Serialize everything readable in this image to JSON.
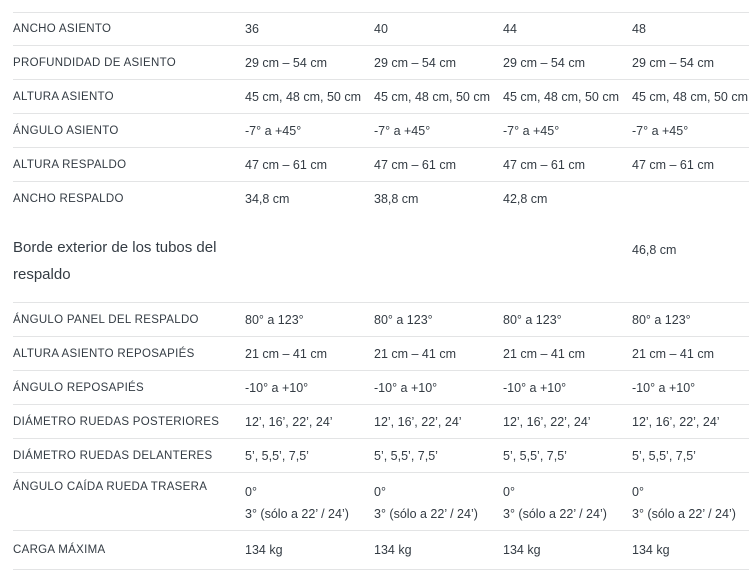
{
  "table": {
    "columns": [
      "36",
      "40",
      "44",
      "48"
    ],
    "rows": [
      {
        "label": "ANCHO ASIENTO",
        "variant": "first",
        "values": [
          "36",
          "40",
          "44",
          "48"
        ]
      },
      {
        "label": "PROFUNDIDAD DE ASIENTO",
        "variant": "",
        "values": [
          "29 cm – 54 cm",
          "29 cm – 54 cm",
          "29 cm – 54 cm",
          "29 cm – 54 cm"
        ]
      },
      {
        "label": "ALTURA ASIENTO",
        "variant": "",
        "values": [
          "45 cm, 48 cm, 50 cm",
          "45 cm, 48 cm, 50 cm",
          "45 cm, 48 cm, 50 cm",
          "45 cm, 48 cm, 50 cm"
        ]
      },
      {
        "label": "ÁNGULO ASIENTO",
        "variant": "",
        "values": [
          "-7° a +45°",
          "-7° a +45°",
          "-7° a +45°",
          "-7° a +45°"
        ]
      },
      {
        "label": "ALTURA RESPALDO",
        "variant": "",
        "values": [
          "47 cm – 61 cm",
          "47 cm – 61 cm",
          "47 cm – 61 cm",
          "47 cm – 61 cm"
        ]
      },
      {
        "label": "ANCHO RESPALDO",
        "variant": "no-border",
        "values": [
          "34,8 cm",
          "38,8 cm",
          "42,8 cm",
          ""
        ]
      },
      {
        "label": "Borde exterior de los tubos del respaldo",
        "variant": "tall",
        "values": [
          "",
          "",
          "",
          "46,8 cm"
        ]
      },
      {
        "label": "ÁNGULO PANEL DEL RESPALDO",
        "variant": "",
        "values": [
          "80° a 123°",
          "80° a 123°",
          "80° a 123°",
          "80° a 123°"
        ]
      },
      {
        "label": "ALTURA ASIENTO REPOSAPIÉS",
        "variant": "",
        "values": [
          "21 cm – 41 cm",
          "21 cm – 41 cm",
          "21 cm – 41 cm",
          "21 cm – 41 cm"
        ]
      },
      {
        "label": "ÁNGULO REPOSAPIÉS",
        "variant": "",
        "values": [
          "-10° a +10°",
          "-10° a +10°",
          "-10° a +10°",
          "-10° a +10°"
        ]
      },
      {
        "label": "DIÁMETRO RUEDAS POSTERIORES",
        "variant": "",
        "values": [
          "12’, 16’, 22’, 24’",
          "12’, 16’, 22’, 24’",
          "12’, 16’, 22’, 24’",
          "12’, 16’, 22’, 24’"
        ]
      },
      {
        "label": "DIÁMETRO RUEDAS DELANTERES",
        "variant": "",
        "values": [
          "5’, 5,5’, 7,5’",
          "5’, 5,5’, 7,5’",
          "5’, 5,5’, 7,5’",
          "5’, 5,5’, 7,5’"
        ]
      },
      {
        "label": "ÁNGULO CAÍDA RUEDA TRASERA",
        "variant": "two-line",
        "values": [
          [
            "0°",
            "3° (sólo a 22’ / 24’)"
          ],
          [
            "0°",
            "3° (sólo a 22’ / 24’)"
          ],
          [
            "0°",
            "3° (sólo a 22’ / 24’)"
          ],
          [
            "0°",
            "3° (sólo a 22’ / 24’)"
          ]
        ]
      },
      {
        "label": "CARGA MÁXIMA",
        "variant": "last",
        "values": [
          "134 kg",
          "134 kg",
          "134 kg",
          "134 kg"
        ]
      }
    ]
  },
  "colors": {
    "text": "#333b43",
    "separator": "#e3e4e5",
    "background": "#ffffff"
  }
}
